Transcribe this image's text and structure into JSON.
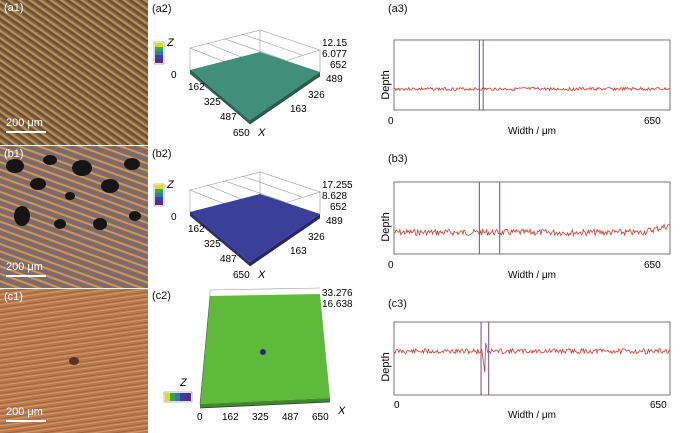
{
  "panels": {
    "a1": "(a1)",
    "a2": "(a2)",
    "a3": "(a3)",
    "b1": "(b1)",
    "b2": "(b2)",
    "b3": "(b3)",
    "c1": "(c1)",
    "c2": "(c2)",
    "c3": "(c3)"
  },
  "scale_bar": "200 μm",
  "surf": {
    "a": {
      "z_top": "12.15",
      "z_mid": "6.077",
      "x_ticks": [
        "0",
        "162",
        "325",
        "487",
        "650"
      ],
      "y_ticks": [
        "652",
        "489",
        "326",
        "163"
      ],
      "color": "#3f8f7a"
    },
    "b": {
      "z_top": "17.255",
      "z_mid": "8.628",
      "x_ticks": [
        "0",
        "162",
        "325",
        "487",
        "650"
      ],
      "y_ticks": [
        "652",
        "489",
        "326",
        "163"
      ],
      "color": "#3b3f9a"
    },
    "c": {
      "z_top": "33.276",
      "z_mid": "16.638",
      "x_ticks": [
        "0",
        "162",
        "325",
        "487",
        "650"
      ],
      "color": "#5fba3c"
    }
  },
  "axis": {
    "z": "Z",
    "x": "X"
  },
  "profile": {
    "ylabel": "Depth",
    "xlabel": "Width / μm",
    "x_start": "0",
    "x_end": "650",
    "line_color": "#d23a2e"
  },
  "chart_data": [
    {
      "type": "line",
      "panel": "(a3)",
      "xlabel": "Width / μm",
      "ylabel": "Depth",
      "xlim": [
        0,
        650
      ],
      "tick_labels": [
        "0",
        "650"
      ],
      "cursor_x": [
        201,
        210
      ]
    },
    {
      "type": "line",
      "panel": "(b3)",
      "xlabel": "Width / μm",
      "ylabel": "Depth",
      "xlim": [
        0,
        650
      ],
      "tick_labels": [
        "0",
        "650"
      ],
      "cursor_x": [
        201,
        249
      ]
    },
    {
      "type": "line",
      "panel": "(c3)",
      "xlabel": "Width / μm",
      "ylabel": "Depth",
      "xlim": [
        0,
        650
      ],
      "tick_labels": [
        "0",
        "650"
      ],
      "cursor_x": [
        205,
        223
      ]
    }
  ]
}
